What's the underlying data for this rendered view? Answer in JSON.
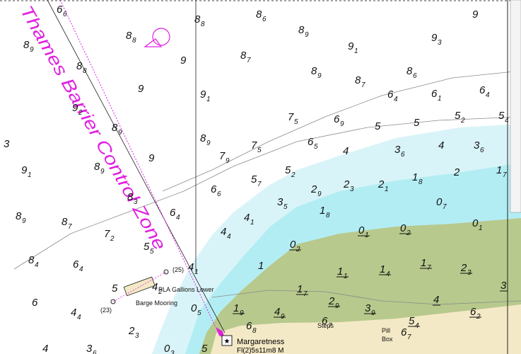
{
  "chart_title_zone": "Thames Barrier Control Zone",
  "labels": {
    "mooring_east": "(25)",
    "mooring_name": "PLA Gallions Lower",
    "mooring_west": "(23)",
    "mooring_type": "Barge Mooring",
    "point": "Margaretness",
    "light": "Fl(2)5s11m8 M",
    "steps": "Steps",
    "pill": "Pill",
    "box": "Box"
  },
  "soundings": [
    {
      "depth": "6",
      "dm": "6"
    },
    {
      "depth": "8",
      "dm": "8"
    },
    {
      "depth": "8",
      "dm": "6"
    },
    {
      "depth": "8",
      "dm": "9"
    },
    {
      "depth": "9"
    },
    {
      "depth": "8",
      "dm": "9"
    },
    {
      "depth": "8",
      "dm": "8"
    },
    {
      "depth": "9"
    },
    {
      "depth": "8",
      "dm": "7"
    },
    {
      "depth": "9",
      "dm": "1"
    },
    {
      "depth": "9",
      "dm": "3"
    },
    {
      "depth": "8",
      "dm": "8"
    },
    {
      "depth": "9"
    },
    {
      "depth": "8",
      "dm": "9"
    },
    {
      "depth": "8",
      "dm": "7"
    },
    {
      "depth": "8",
      "dm": "6"
    },
    {
      "depth": "9",
      "dm": "1"
    },
    {
      "depth": "6",
      "dm": "4"
    },
    {
      "depth": "6",
      "dm": "1"
    },
    {
      "depth": "6",
      "dm": "4"
    },
    {
      "depth": "9",
      "dm": "2"
    },
    {
      "depth": "7",
      "dm": "5"
    },
    {
      "depth": "6",
      "dm": "9"
    },
    {
      "depth": "5"
    },
    {
      "depth": "5"
    },
    {
      "depth": "5",
      "dm": "2"
    },
    {
      "depth": "5",
      "dm": "4"
    },
    {
      "depth": "8",
      "dm": "9"
    },
    {
      "depth": "8",
      "dm": "9"
    },
    {
      "depth": "7",
      "dm": "5"
    },
    {
      "depth": "6",
      "dm": "5"
    },
    {
      "depth": "4"
    },
    {
      "depth": "3",
      "dm": "6"
    },
    {
      "depth": "4"
    },
    {
      "depth": "3",
      "dm": "6"
    },
    {
      "depth": "3"
    },
    {
      "depth": "9"
    },
    {
      "depth": "7",
      "dm": "9"
    },
    {
      "depth": "9",
      "dm": "1"
    },
    {
      "depth": "8",
      "dm": "9"
    },
    {
      "depth": "5",
      "dm": "2"
    },
    {
      "depth": "1",
      "dm": "8"
    },
    {
      "depth": "2"
    },
    {
      "depth": "1",
      "dm": "7"
    },
    {
      "depth": "6",
      "dm": "6"
    },
    {
      "depth": "5",
      "dm": "7"
    },
    {
      "depth": "2",
      "dm": "9"
    },
    {
      "depth": "2",
      "dm": "3"
    },
    {
      "depth": "2",
      "dm": "1"
    },
    {
      "depth": "8",
      "dm": "3"
    },
    {
      "depth": "3",
      "dm": "5"
    },
    {
      "depth": "0",
      "dm": "7"
    },
    {
      "depth": "8",
      "dm": "9"
    },
    {
      "depth": "8",
      "dm": "7"
    },
    {
      "depth": "6",
      "dm": "4"
    },
    {
      "depth": "1",
      "dm": "8"
    },
    {
      "depth": "7",
      "dm": "2"
    },
    {
      "depth": "4",
      "dm": "4"
    },
    {
      "depth": "4",
      "dm": "1"
    },
    {
      "depth": "0",
      "dm": "1",
      "drying": true
    },
    {
      "depth": "0",
      "dm": "2",
      "drying": true
    },
    {
      "depth": "0",
      "dm": "1"
    },
    {
      "depth": "5",
      "dm": "5"
    },
    {
      "depth": "0",
      "dm": "2",
      "drying": true
    },
    {
      "depth": "8",
      "dm": "4"
    },
    {
      "depth": "6",
      "dm": "4"
    },
    {
      "depth": "4",
      "dm": "1"
    },
    {
      "depth": "1"
    },
    {
      "depth": "1",
      "dm": "1",
      "drying": true
    },
    {
      "depth": "1",
      "dm": "4",
      "drying": true
    },
    {
      "depth": "1",
      "dm": "7",
      "drying": true
    },
    {
      "depth": "2",
      "dm": "3",
      "drying": true
    },
    {
      "depth": "5"
    },
    {
      "depth": "4",
      "dm": "2"
    },
    {
      "depth": "3",
      "drying": true
    },
    {
      "depth": "6"
    },
    {
      "depth": "4",
      "dm": "4"
    },
    {
      "depth": "0",
      "dm": "5"
    },
    {
      "depth": "1",
      "dm": "7",
      "drying": true
    },
    {
      "depth": "2",
      "dm": "9",
      "drying": true
    },
    {
      "depth": "4",
      "drying": true
    },
    {
      "depth": "1",
      "dm": "9",
      "drying": true
    },
    {
      "depth": "4",
      "dm": "9",
      "drying": true
    },
    {
      "depth": "3",
      "dm": "9",
      "drying": true
    },
    {
      "depth": "2",
      "dm": "3"
    },
    {
      "depth": "6",
      "dm": "8"
    },
    {
      "depth": "6",
      "dm": "7"
    },
    {
      "depth": "5",
      "dm": "4",
      "drying": true
    },
    {
      "depth": "6",
      "dm": "7"
    },
    {
      "depth": "6",
      "dm": "2",
      "drying": true
    },
    {
      "depth": "4"
    },
    {
      "depth": "3",
      "dm": "6"
    },
    {
      "depth": "0",
      "dm": "3"
    },
    {
      "depth": "5"
    }
  ]
}
